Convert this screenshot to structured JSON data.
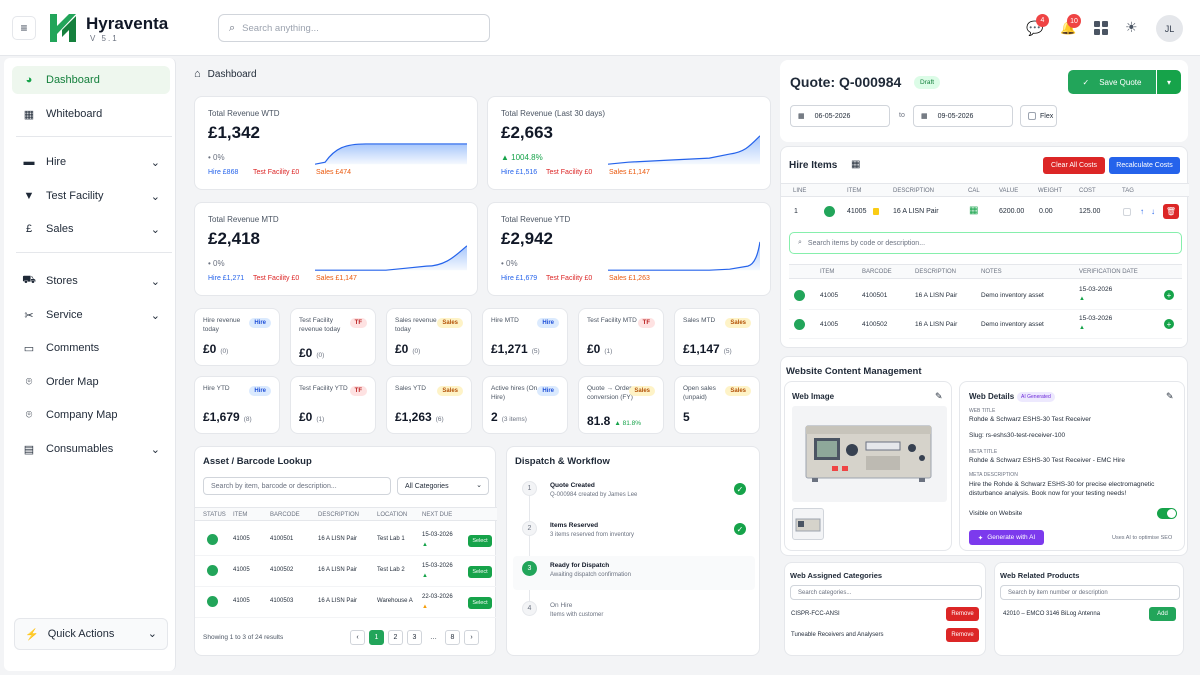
{
  "app": {
    "name": "Hyraventa",
    "version": "V 5.1",
    "user_initials": "JL",
    "chat_count": "4",
    "notif_count": "10"
  },
  "search": {
    "placeholder": "Search anything..."
  },
  "sidebar": {
    "items": [
      {
        "label": "Dashboard"
      },
      {
        "label": "Whiteboard"
      },
      {
        "label": "Hire"
      },
      {
        "label": "Test Facility"
      },
      {
        "label": "Sales"
      },
      {
        "label": "Stores"
      },
      {
        "label": "Service"
      },
      {
        "label": "Comments"
      },
      {
        "label": "Order Map"
      },
      {
        "label": "Company Map"
      },
      {
        "label": "Consumables"
      }
    ],
    "quick_actions": "Quick Actions"
  },
  "breadcrumb": "Dashboard",
  "revenue": [
    {
      "title": "Total Revenue WTD",
      "value": "£1,342",
      "change": "• 0%",
      "hire": "Hire £868",
      "tf": "Test Facility £0",
      "sales": "Sales £474"
    },
    {
      "title": "Total Revenue (Last 30 days)",
      "value": "£2,663",
      "change": "▲ 1004.8%",
      "hire": "Hire £1,516",
      "tf": "Test Facility £0",
      "sales": "Sales £1,147"
    },
    {
      "title": "Total Revenue MTD",
      "value": "£2,418",
      "change": "• 0%",
      "hire": "Hire £1,271",
      "tf": "Test Facility £0",
      "sales": "Sales £1,147"
    },
    {
      "title": "Total Revenue YTD",
      "value": "£2,942",
      "change": "• 0%",
      "hire": "Hire £1,679",
      "tf": "Test Facility £0",
      "sales": "Sales £1,263"
    }
  ],
  "kpis": [
    {
      "label": "Hire revenue today",
      "badge": "Hire",
      "value": "£0",
      "sub": "(0)"
    },
    {
      "label": "Test Facility revenue today",
      "badge": "TF",
      "value": "£0",
      "sub": "(0)"
    },
    {
      "label": "Sales revenue today",
      "badge": "Sales",
      "value": "£0",
      "sub": "(0)"
    },
    {
      "label": "Hire MTD",
      "badge": "Hire",
      "value": "£1,271",
      "sub": "(5)"
    },
    {
      "label": "Test Facility MTD",
      "badge": "TF",
      "value": "£0",
      "sub": "(1)"
    },
    {
      "label": "Sales MTD",
      "badge": "Sales",
      "value": "£1,147",
      "sub": "(5)"
    },
    {
      "label": "Hire YTD",
      "badge": "Hire",
      "value": "£1,679",
      "sub": "(8)"
    },
    {
      "label": "Test Facility YTD",
      "badge": "TF",
      "value": "£0",
      "sub": "(1)"
    },
    {
      "label": "Sales YTD",
      "badge": "Sales",
      "value": "£1,263",
      "sub": "(6)"
    },
    {
      "label": "Active hires (On Hire)",
      "badge": "Hire",
      "value": "2",
      "sub": "(3 items)"
    },
    {
      "label": "Quote → Order conversion (FY)",
      "badge": "Sales",
      "value": "81.8",
      "sub": "▲ 81.8%"
    },
    {
      "label": "Open sales (unpaid)",
      "badge": "Sales",
      "value": "5",
      "sub": ""
    }
  ],
  "asset": {
    "title": "Asset / Barcode Lookup",
    "search_placeholder": "Search by item, barcode or description...",
    "category": "All Categories",
    "headers": [
      "STATUS",
      "ITEM",
      "BARCODE",
      "DESCRIPTION",
      "LOCATION",
      "NEXT DUE"
    ],
    "rows": [
      {
        "item": "41005",
        "barcode": "4100501",
        "desc": "16 A LISN Pair",
        "loc": "Test Lab 1",
        "due": "15-03-2026",
        "btn": "Select"
      },
      {
        "item": "41005",
        "barcode": "4100502",
        "desc": "16 A LISN Pair",
        "loc": "Test Lab 2",
        "due": "15-03-2026",
        "btn": "Select"
      },
      {
        "item": "41005",
        "barcode": "4100503",
        "desc": "16 A LISN Pair",
        "loc": "Warehouse A",
        "due": "22-03-2026",
        "btn": "Select"
      }
    ],
    "footer": "Showing 1 to 3 of 24 results",
    "pages": [
      "‹",
      "1",
      "2",
      "3",
      "…",
      "8",
      "›"
    ]
  },
  "dispatch": {
    "title": "Dispatch & Workflow",
    "steps": [
      {
        "n": "1",
        "title": "Quote Created",
        "sub": "Q-000984 created by James Lee"
      },
      {
        "n": "2",
        "title": "Items Reserved",
        "sub": "3 items reserved from inventory"
      },
      {
        "n": "3",
        "title": "Ready for Dispatch",
        "sub": "Awaiting dispatch confirmation"
      },
      {
        "n": "4",
        "title": "On Hire",
        "sub": "Items with customer"
      }
    ]
  },
  "quote": {
    "title": "Quote: Q-000984",
    "status": "Draft",
    "save": "Save Quote",
    "date_from": "06-05-2026",
    "to": "to",
    "date_to": "09-05-2026",
    "flex": "Flex"
  },
  "hire_items": {
    "title": "Hire Items",
    "clear": "Clear All Costs",
    "recalc": "Recalculate Costs",
    "headers": [
      "LINE",
      "ITEM",
      "DESCRIPTION",
      "CAL",
      "VALUE",
      "WEIGHT",
      "COST",
      "TAG"
    ],
    "row": {
      "line": "1",
      "item": "41005",
      "desc": "16 A LISN Pair",
      "value": "6200.00",
      "weight": "0.00",
      "cost": "125.00"
    },
    "search_placeholder": "Search items by code or description...",
    "sub_headers": [
      "ITEM",
      "BARCODE",
      "DESCRIPTION",
      "NOTES",
      "VERIFICATION DATE"
    ],
    "sub_rows": [
      {
        "item": "41005",
        "barcode": "4100501",
        "desc": "16 A LISN Pair",
        "notes": "Demo inventory asset",
        "date": "15-03-2026"
      },
      {
        "item": "41005",
        "barcode": "4100502",
        "desc": "16 A LISN Pair",
        "notes": "Demo inventory asset",
        "date": "15-03-2026"
      }
    ]
  },
  "wcm": {
    "title": "Website Content Management",
    "web_image": "Web Image",
    "web_details": "Web Details",
    "ai_badge": "AI Generated",
    "web_title_lbl": "WEB TITLE",
    "web_title": "Rohde & Schwarz ESHS-30 Test Receiver",
    "slug": "Slug: rs-eshs30-test-receiver-100",
    "meta_title_lbl": "META TITLE",
    "meta_title": "Rohde & Schwarz ESHS-30 Test Receiver - EMC Hire",
    "meta_desc_lbl": "META DESCRIPTION",
    "meta_desc": "Hire the Rohde & Schwarz ESHS-30 for precise electromagnetic disturbance analysis. Book now for your testing needs!",
    "visible": "Visible on Website",
    "generate": "Generate with AI",
    "ai_note": "Uses AI to optimise SEO"
  },
  "categories": {
    "title": "Web Assigned Categories",
    "placeholder": "Search categories...",
    "items": [
      {
        "name": "CISPR-FCC-ANSI",
        "btn": "Remove"
      },
      {
        "name": "Tuneable Receivers and Analysers",
        "btn": "Remove"
      }
    ]
  },
  "related": {
    "title": "Web Related Products",
    "placeholder": "Search by item number or description",
    "items": [
      {
        "name": "42010 – EMCO 3146 BiLog Antenna",
        "btn": "Add"
      }
    ]
  },
  "colors": {
    "brand": "#16a34a",
    "accent_blue": "#2563eb",
    "danger": "#dc2626"
  }
}
